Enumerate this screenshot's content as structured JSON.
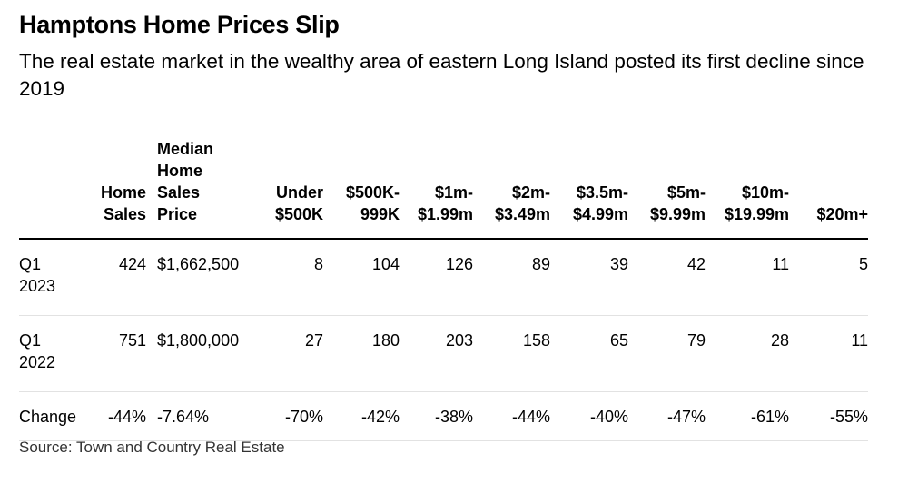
{
  "title": "Hamptons Home Prices Slip",
  "subtitle": "The real estate market in the wealthy area of eastern Long Island posted its first decline since 2019",
  "source": "Source: Town and Country Real Estate",
  "chart_data": {
    "type": "table",
    "columns": [
      {
        "key": "period",
        "lines": [
          ""
        ]
      },
      {
        "key": "home_sales",
        "lines": [
          "Home",
          "Sales"
        ]
      },
      {
        "key": "median_price",
        "lines": [
          "Median",
          "Home",
          "Sales",
          "Price"
        ]
      },
      {
        "key": "under_500k",
        "lines": [
          "Under",
          "$500K"
        ]
      },
      {
        "key": "500k_999k",
        "lines": [
          "$500K-",
          "999K"
        ]
      },
      {
        "key": "1m_1_99m",
        "lines": [
          "$1m-",
          "$1.99m"
        ]
      },
      {
        "key": "2m_3_49m",
        "lines": [
          "$2m-",
          "$3.49m"
        ]
      },
      {
        "key": "3_5m_4_99m",
        "lines": [
          "$3.5m-",
          "$4.99m"
        ]
      },
      {
        "key": "5m_9_99m",
        "lines": [
          "$5m-",
          "$9.99m"
        ]
      },
      {
        "key": "10m_19_99m",
        "lines": [
          "$10m-",
          "$19.99m"
        ]
      },
      {
        "key": "20m_plus",
        "lines": [
          "$20m+"
        ]
      }
    ],
    "rows": [
      {
        "label_lines": [
          "Q1",
          "2023"
        ],
        "cells": [
          "424",
          "$1,662,500",
          "8",
          "104",
          "126",
          "89",
          "39",
          "42",
          "11",
          "5"
        ]
      },
      {
        "label_lines": [
          "Q1",
          "2022"
        ],
        "cells": [
          "751",
          "$1,800,000",
          "27",
          "180",
          "203",
          "158",
          "65",
          "79",
          "28",
          "11"
        ]
      },
      {
        "label_lines": [
          "Change"
        ],
        "cells": [
          "-44%",
          "-7.64%",
          "-70%",
          "-42%",
          "-38%",
          "-44%",
          "-40%",
          "-47%",
          "-61%",
          "-55%"
        ]
      }
    ]
  }
}
